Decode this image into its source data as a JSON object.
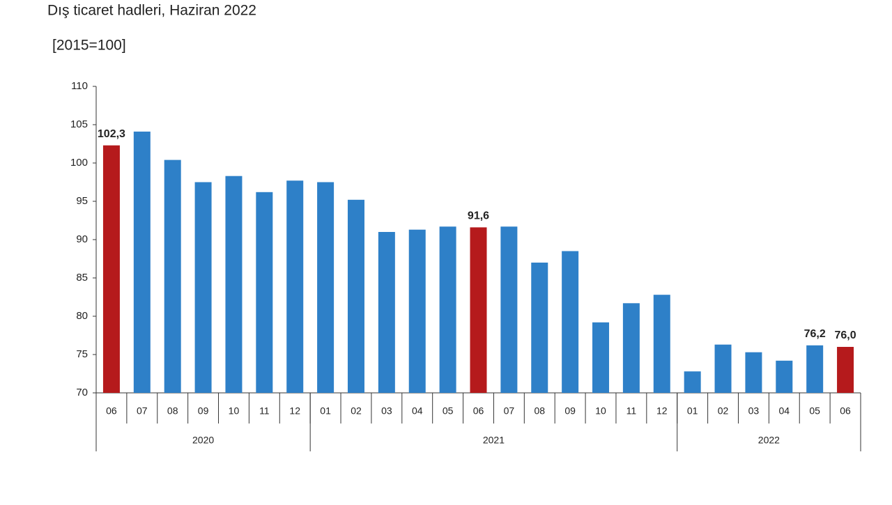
{
  "chart_data": {
    "type": "bar",
    "title": "Dış ticaret hadleri, Haziran 2022",
    "subtitle": "[2015=100]",
    "categories": [
      "06",
      "07",
      "08",
      "09",
      "10",
      "11",
      "12",
      "01",
      "02",
      "03",
      "04",
      "05",
      "06",
      "07",
      "08",
      "09",
      "10",
      "11",
      "12",
      "01",
      "02",
      "03",
      "04",
      "05",
      "06"
    ],
    "groups": [
      {
        "name": "2020",
        "count": 7
      },
      {
        "name": "2021",
        "count": 12
      },
      {
        "name": "2022",
        "count": 6
      }
    ],
    "values": [
      102.3,
      104.1,
      100.4,
      97.5,
      98.3,
      96.2,
      97.7,
      97.5,
      95.2,
      91.0,
      91.3,
      91.7,
      91.6,
      91.7,
      87.0,
      88.5,
      79.2,
      81.7,
      82.8,
      72.8,
      76.3,
      75.3,
      74.2,
      76.2,
      76.0
    ],
    "value_labels": [
      "102,3",
      null,
      null,
      null,
      null,
      null,
      null,
      null,
      null,
      null,
      null,
      null,
      "91,6",
      null,
      null,
      null,
      null,
      null,
      null,
      null,
      null,
      null,
      null,
      "76,2",
      "76,0"
    ],
    "colors": [
      "#b51a1c",
      "#2e80c8",
      "#2e80c8",
      "#2e80c8",
      "#2e80c8",
      "#2e80c8",
      "#2e80c8",
      "#2e80c8",
      "#2e80c8",
      "#2e80c8",
      "#2e80c8",
      "#2e80c8",
      "#b51a1c",
      "#2e80c8",
      "#2e80c8",
      "#2e80c8",
      "#2e80c8",
      "#2e80c8",
      "#2e80c8",
      "#2e80c8",
      "#2e80c8",
      "#2e80c8",
      "#2e80c8",
      "#2e80c8",
      "#b51a1c"
    ],
    "ylim": [
      70,
      110
    ],
    "yticks": [
      70,
      75,
      80,
      85,
      90,
      95,
      100,
      105,
      110
    ],
    "grid": false
  }
}
